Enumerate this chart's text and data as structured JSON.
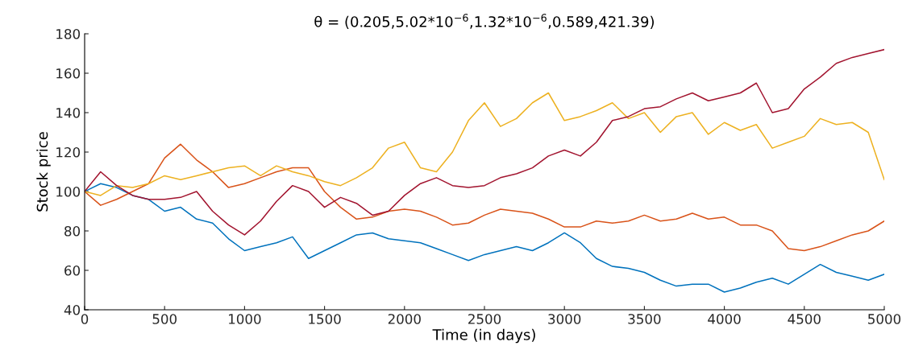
{
  "chart_data": {
    "type": "line",
    "title": "θ = (0.205,5.02*10$^{−6}$,1.32*10$^{−6}$,0.589,421.39)",
    "xlabel": "Time (in days)",
    "ylabel": "Stock price",
    "x": [
      0,
      100,
      200,
      300,
      400,
      500,
      600,
      700,
      800,
      900,
      1000,
      1100,
      1200,
      1300,
      1400,
      1500,
      1600,
      1700,
      1800,
      1900,
      2000,
      2100,
      2200,
      2300,
      2400,
      2500,
      2600,
      2700,
      2800,
      2900,
      3000,
      3100,
      3200,
      3300,
      3400,
      3500,
      3600,
      3700,
      3800,
      3900,
      4000,
      4100,
      4200,
      4300,
      4400,
      4500,
      4600,
      4700,
      4800,
      4900,
      5000
    ],
    "series": [
      {
        "color": "#0072bd",
        "values": [
          100,
          104,
          102,
          98,
          96,
          90,
          92,
          86,
          84,
          76,
          70,
          72,
          74,
          77,
          66,
          70,
          74,
          78,
          79,
          76,
          75,
          74,
          71,
          68,
          65,
          68,
          70,
          72,
          70,
          74,
          79,
          74,
          66,
          62,
          61,
          59,
          55,
          52,
          53,
          53,
          49,
          51,
          54,
          56,
          53,
          58,
          63,
          59,
          57,
          55,
          58
        ]
      },
      {
        "color": "#d95319",
        "values": [
          100,
          93,
          96,
          100,
          104,
          117,
          124,
          116,
          110,
          102,
          104,
          107,
          110,
          112,
          112,
          100,
          92,
          86,
          87,
          90,
          91,
          90,
          87,
          83,
          84,
          88,
          91,
          90,
          89,
          86,
          82,
          82,
          85,
          84,
          85,
          88,
          85,
          86,
          89,
          86,
          87,
          83,
          83,
          80,
          71,
          70,
          72,
          75,
          78,
          80,
          85
        ]
      },
      {
        "color": "#edb120",
        "values": [
          100,
          98,
          103,
          102,
          104,
          108,
          106,
          108,
          110,
          112,
          113,
          108,
          113,
          110,
          108,
          105,
          103,
          107,
          112,
          122,
          125,
          112,
          110,
          120,
          136,
          145,
          133,
          137,
          145,
          150,
          136,
          138,
          141,
          145,
          137,
          140,
          130,
          138,
          140,
          129,
          135,
          131,
          134,
          122,
          125,
          128,
          137,
          134,
          135,
          130,
          106
        ]
      },
      {
        "color": "#a2142f",
        "values": [
          100,
          110,
          103,
          98,
          96,
          96,
          97,
          100,
          90,
          83,
          78,
          85,
          95,
          103,
          100,
          92,
          97,
          94,
          88,
          90,
          98,
          104,
          107,
          103,
          102,
          103,
          107,
          109,
          112,
          118,
          121,
          118,
          125,
          136,
          138,
          142,
          143,
          147,
          150,
          146,
          148,
          150,
          155,
          140,
          142,
          152,
          158,
          165,
          168,
          170,
          172
        ]
      }
    ],
    "xlim": [
      0,
      5000
    ],
    "xticks": [
      0,
      500,
      1000,
      1500,
      2000,
      2500,
      3000,
      3500,
      4000,
      4500,
      5000
    ],
    "ylim": [
      40,
      180
    ],
    "yticks": [
      40,
      60,
      80,
      100,
      120,
      140,
      160,
      180
    ],
    "grid": false,
    "legend": false
  }
}
